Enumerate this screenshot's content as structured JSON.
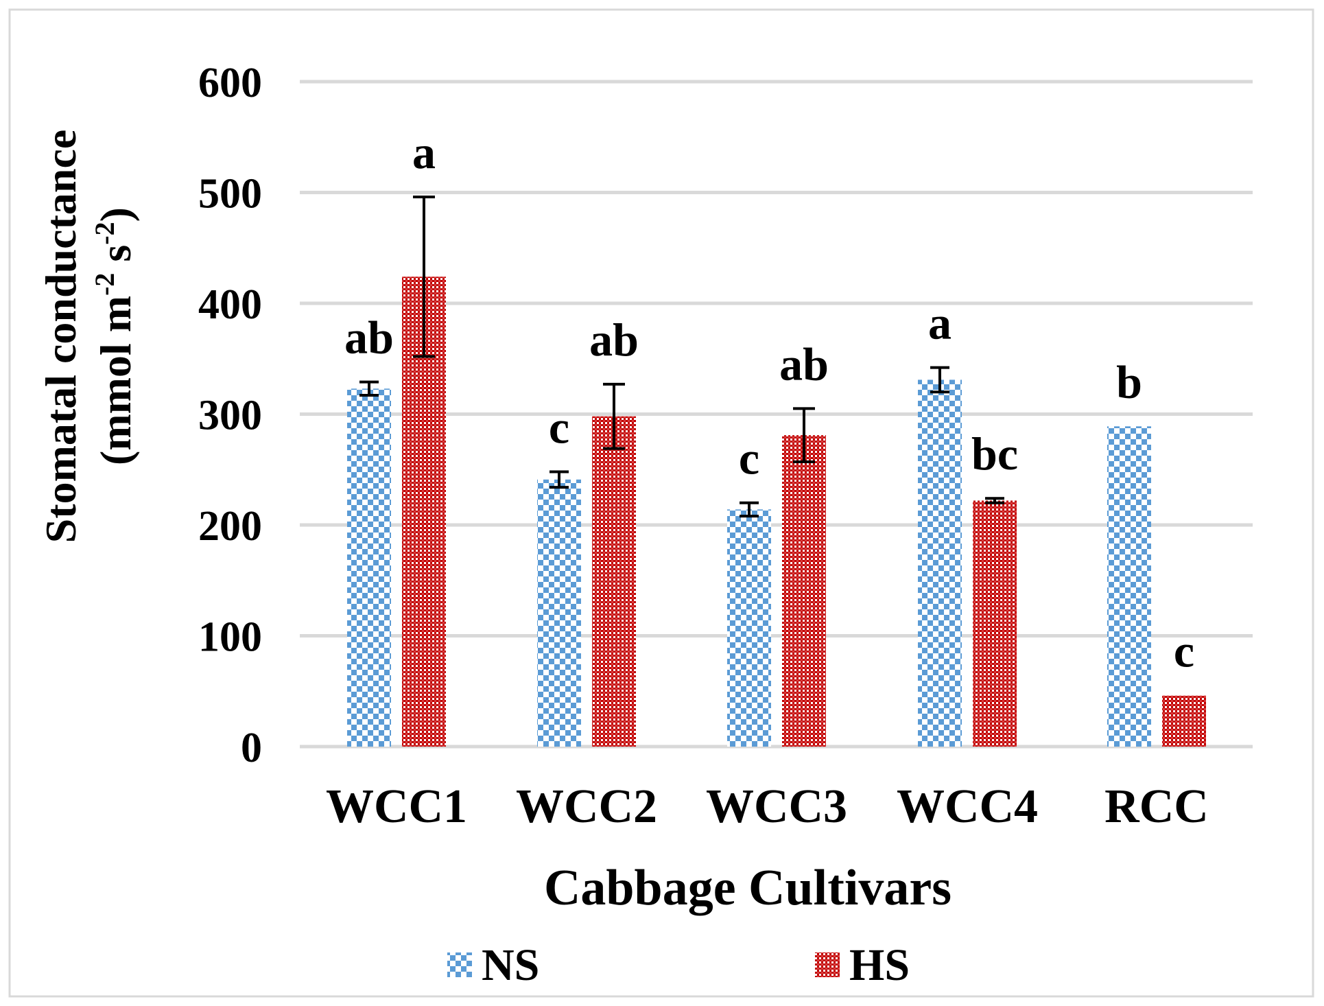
{
  "chart_data": {
    "type": "bar",
    "title": "",
    "xlabel": "Cabbage Cultivars",
    "ylabel_main": "Stomatal conductance",
    "ylabel_unit": {
      "prefix": "(mmol m",
      "exp1": "-2",
      "mid": " s",
      "exp2": "-2",
      "suffix": ")"
    },
    "categories": [
      "WCC1",
      "WCC2",
      "WCC3",
      "WCC4",
      "RCC"
    ],
    "yticks": [
      "0",
      "100",
      "200",
      "300",
      "400",
      "500",
      "600"
    ],
    "ylim": [
      0,
      600
    ],
    "grid": true,
    "legend_position": "bottom",
    "series": [
      {
        "name": "NS",
        "color": "#5b9bd5",
        "pattern": "dotted-squares",
        "values": [
          323,
          241,
          214,
          331,
          289
        ],
        "errors": [
          6,
          7,
          6,
          11,
          null
        ],
        "letters": [
          "ab",
          "c",
          "c",
          "a",
          "b"
        ]
      },
      {
        "name": "HS",
        "color": "#c00000",
        "pattern": "checker",
        "values": [
          424,
          298,
          281,
          222,
          46
        ],
        "errors": [
          72,
          29,
          24,
          2,
          null
        ],
        "letters": [
          "a",
          "ab",
          "ab",
          "bc",
          "c"
        ]
      }
    ]
  }
}
